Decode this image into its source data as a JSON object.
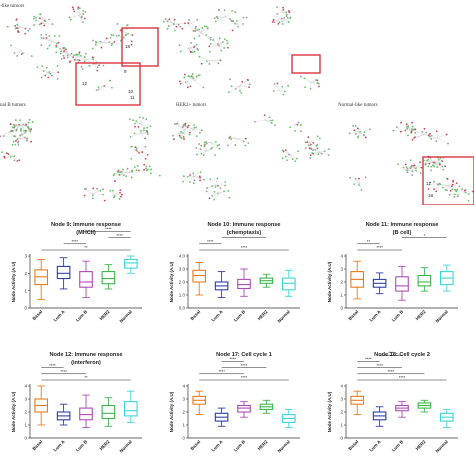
{
  "networks": [
    {
      "id": "basal",
      "label": "-like tumors",
      "boxes": [
        {
          "labels": [
            "18"
          ]
        },
        {
          "labels": [
            "9",
            "12",
            "10",
            "11"
          ]
        }
      ]
    },
    {
      "id": "lumA",
      "label": "",
      "boxes": [
        {
          "labels": []
        }
      ]
    },
    {
      "id": "lumB",
      "label": "nal B tumors",
      "boxes": []
    },
    {
      "id": "her2",
      "label": "HER2+ tumors",
      "boxes": []
    },
    {
      "id": "normal",
      "label": "Normal-like tumors",
      "boxes": [
        {
          "labels": [
            "17",
            "18"
          ]
        }
      ]
    }
  ],
  "colors": {
    "basal": "#e87b1e",
    "lumA": "#2b3fa8",
    "lumB": "#b04ab8",
    "her2": "#3cb54a",
    "normal": "#3fd4dc",
    "box_frame": "#d9363e",
    "node_red": "#c8475c",
    "node_green": "#69c26b"
  },
  "chart_data": [
    {
      "type": "box",
      "title_line1": "Node 9: Immune response",
      "title_line2": "(MHCII)",
      "ylabel": "Node Activity (A.U)",
      "categories": [
        "Basal",
        "Lum A",
        "Lum B",
        "HER2",
        "Normal"
      ],
      "ylim": [
        0,
        3
      ],
      "yticks": [
        0,
        1,
        2,
        3
      ],
      "series": [
        {
          "name": "Basal",
          "min": 0.5,
          "q1": 1.35,
          "median": 1.8,
          "q3": 2.2,
          "max": 2.8
        },
        {
          "name": "Lum A",
          "min": 1.1,
          "q1": 1.7,
          "median": 2.0,
          "q3": 2.4,
          "max": 2.9
        },
        {
          "name": "Lum B",
          "min": 0.6,
          "q1": 1.2,
          "median": 1.5,
          "q3": 2.1,
          "max": 2.7
        },
        {
          "name": "HER2",
          "min": 1.1,
          "q1": 1.4,
          "median": 1.7,
          "q3": 2.1,
          "max": 2.5
        },
        {
          "name": "Normal",
          "min": 2.0,
          "q1": 2.3,
          "median": 2.6,
          "q3": 2.8,
          "max": 3.0
        }
      ],
      "significance": [
        {
          "from": 0,
          "to": 4,
          "label": "**"
        },
        {
          "from": 1,
          "to": 2,
          "label": "****"
        },
        {
          "from": 3,
          "to": 4,
          "label": "****"
        },
        {
          "from": 2,
          "to": 4,
          "label": "****"
        }
      ]
    },
    {
      "type": "box",
      "title_line1": "Node 10: Immune response",
      "title_line2": "(chemotaxis)",
      "ylabel": "Node Activity (A.U)",
      "categories": [
        "Basal",
        "Lum A",
        "Lum B",
        "HER2",
        "Normal"
      ],
      "ylim": [
        0,
        4
      ],
      "yticks": [
        0.0,
        1.0,
        2.0,
        3.0,
        4.0
      ],
      "series": [
        {
          "name": "Basal",
          "min": 1.0,
          "q1": 2.0,
          "median": 2.5,
          "q3": 2.9,
          "max": 3.5
        },
        {
          "name": "Lum A",
          "min": 0.8,
          "q1": 1.4,
          "median": 1.7,
          "q3": 2.0,
          "max": 2.8
        },
        {
          "name": "Lum B",
          "min": 0.9,
          "q1": 1.5,
          "median": 1.8,
          "q3": 2.2,
          "max": 3.0
        },
        {
          "name": "HER2",
          "min": 1.6,
          "q1": 1.9,
          "median": 2.1,
          "q3": 2.3,
          "max": 2.6
        },
        {
          "name": "Normal",
          "min": 0.9,
          "q1": 1.4,
          "median": 1.9,
          "q3": 2.3,
          "max": 2.9
        }
      ],
      "significance": [
        {
          "from": 0,
          "to": 4,
          "label": "****"
        },
        {
          "from": 0,
          "to": 1,
          "label": "****"
        },
        {
          "from": 1,
          "to": 3,
          "label": "*"
        }
      ]
    },
    {
      "type": "box",
      "title_line1": "Node 11: Immune response",
      "title_line2": "(B cell)",
      "ylabel": "Node Activity (A.U)",
      "categories": [
        "Basal",
        "Lum A",
        "Lum B",
        "HER2",
        "Normal"
      ],
      "ylim": [
        0,
        4
      ],
      "yticks": [
        0,
        1,
        2,
        3,
        4
      ],
      "series": [
        {
          "name": "Basal",
          "min": 0.7,
          "q1": 1.6,
          "median": 2.2,
          "q3": 2.8,
          "max": 3.6
        },
        {
          "name": "Lum A",
          "min": 1.1,
          "q1": 1.6,
          "median": 1.9,
          "q3": 2.2,
          "max": 2.7
        },
        {
          "name": "Lum B",
          "min": 0.6,
          "q1": 1.3,
          "median": 1.7,
          "q3": 2.4,
          "max": 3.2
        },
        {
          "name": "HER2",
          "min": 1.3,
          "q1": 1.7,
          "median": 2.0,
          "q3": 2.5,
          "max": 3.1
        },
        {
          "name": "Normal",
          "min": 1.3,
          "q1": 1.8,
          "median": 2.3,
          "q3": 2.8,
          "max": 3.3
        }
      ],
      "significance": [
        {
          "from": 0,
          "to": 2,
          "label": "****"
        },
        {
          "from": 0,
          "to": 1,
          "label": "**"
        },
        {
          "from": 2,
          "to": 4,
          "label": "*"
        }
      ]
    },
    {
      "type": "box",
      "title_line1": "Node 12: Immune response",
      "title_line2": "(interferon)",
      "ylabel": "Node Activity (A.U)",
      "categories": [
        "Basal",
        "Lum A",
        "Lum B",
        "HER2",
        "Normal"
      ],
      "ylim": [
        0,
        4
      ],
      "yticks": [
        0,
        1,
        2,
        3,
        4
      ],
      "series": [
        {
          "name": "Basal",
          "min": 1.0,
          "q1": 2.0,
          "median": 2.5,
          "q3": 3.0,
          "max": 4.0
        },
        {
          "name": "Lum A",
          "min": 1.0,
          "q1": 1.4,
          "median": 1.7,
          "q3": 2.0,
          "max": 2.6
        },
        {
          "name": "Lum B",
          "min": 0.8,
          "q1": 1.4,
          "median": 1.8,
          "q3": 2.3,
          "max": 3.3
        },
        {
          "name": "HER2",
          "min": 0.9,
          "q1": 1.5,
          "median": 1.9,
          "q3": 2.5,
          "max": 3.1
        },
        {
          "name": "Normal",
          "min": 1.2,
          "q1": 1.7,
          "median": 2.1,
          "q3": 2.8,
          "max": 3.6
        }
      ],
      "significance": [
        {
          "from": 0,
          "to": 4,
          "label": "**"
        },
        {
          "from": 0,
          "to": 2,
          "label": "****"
        },
        {
          "from": 0,
          "to": 1,
          "label": "****"
        }
      ]
    },
    {
      "type": "box",
      "title_line1": "Node 17: Cell cycle 1",
      "title_line2": "",
      "ylabel": "Node Activity (A.U)",
      "categories": [
        "Basal",
        "Lum A",
        "Lum B",
        "HER2",
        "Normal"
      ],
      "ylim": [
        0,
        4
      ],
      "yticks": [
        0,
        1,
        2,
        3,
        4
      ],
      "series": [
        {
          "name": "Basal",
          "min": 1.8,
          "q1": 2.6,
          "median": 2.9,
          "q3": 3.2,
          "max": 3.6
        },
        {
          "name": "Lum A",
          "min": 0.9,
          "q1": 1.3,
          "median": 1.6,
          "q3": 1.9,
          "max": 2.3
        },
        {
          "name": "Lum B",
          "min": 1.6,
          "q1": 2.0,
          "median": 2.3,
          "q3": 2.5,
          "max": 2.8
        },
        {
          "name": "HER2",
          "min": 1.9,
          "q1": 2.2,
          "median": 2.4,
          "q3": 2.6,
          "max": 2.9
        },
        {
          "name": "Normal",
          "min": 0.8,
          "q1": 1.2,
          "median": 1.5,
          "q3": 1.8,
          "max": 2.2
        }
      ],
      "significance": [
        {
          "from": 0,
          "to": 4,
          "label": "****"
        },
        {
          "from": 0,
          "to": 2,
          "label": "****"
        },
        {
          "from": 1,
          "to": 3,
          "label": "****"
        },
        {
          "from": 1,
          "to": 2,
          "label": "****"
        }
      ]
    },
    {
      "type": "box",
      "title_line1": "Node 18: Cell cycle 2",
      "title_line2": "",
      "ylabel": "Node Activity (A.U)",
      "categories": [
        "Basal",
        "Lum A",
        "Lum B",
        "HER2",
        "Normal"
      ],
      "ylim": [
        0,
        4
      ],
      "yticks": [
        0,
        1,
        2,
        3,
        4
      ],
      "series": [
        {
          "name": "Basal",
          "min": 1.8,
          "q1": 2.6,
          "median": 2.9,
          "q3": 3.2,
          "max": 3.6
        },
        {
          "name": "Lum A",
          "min": 0.9,
          "q1": 1.4,
          "median": 1.7,
          "q3": 2.0,
          "max": 2.4
        },
        {
          "name": "Lum B",
          "min": 1.6,
          "q1": 2.1,
          "median": 2.3,
          "q3": 2.5,
          "max": 2.8
        },
        {
          "name": "HER2",
          "min": 2.0,
          "q1": 2.3,
          "median": 2.5,
          "q3": 2.7,
          "max": 2.9
        },
        {
          "name": "Normal",
          "min": 0.8,
          "q1": 1.3,
          "median": 1.6,
          "q3": 1.9,
          "max": 2.2
        }
      ],
      "significance": [
        {
          "from": 0,
          "to": 4,
          "label": "****"
        },
        {
          "from": 0,
          "to": 3,
          "label": "****"
        },
        {
          "from": 0,
          "to": 2,
          "label": "****"
        },
        {
          "from": 0,
          "to": 1,
          "label": "****"
        },
        {
          "from": 1,
          "to": 2,
          "label": "***"
        }
      ]
    }
  ]
}
